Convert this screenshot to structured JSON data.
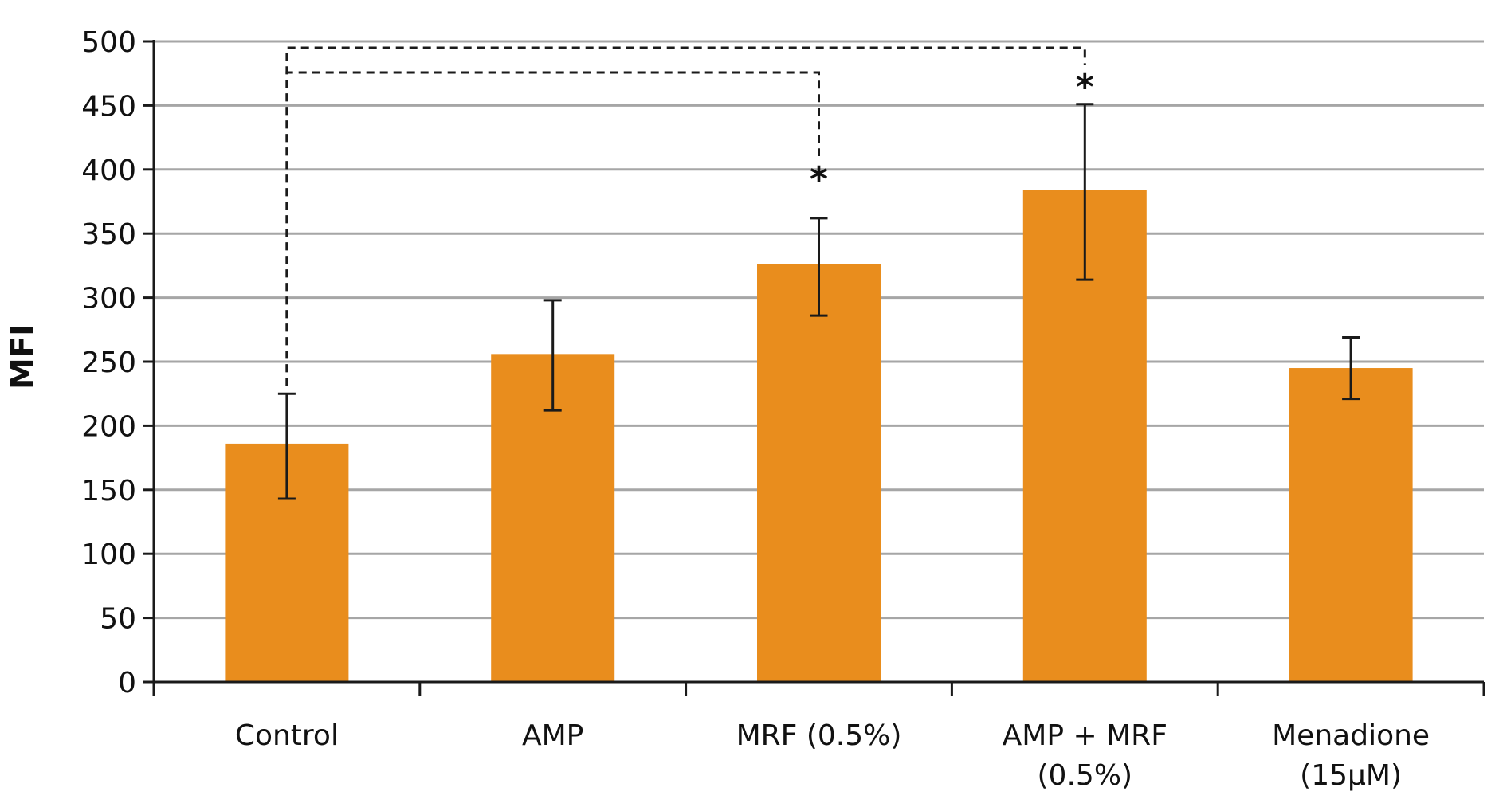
{
  "chart_data": {
    "type": "bar",
    "title": "",
    "xlabel": "",
    "ylabel": "MFI",
    "ylim": [
      0,
      500
    ],
    "yticks": [
      0,
      50,
      100,
      150,
      200,
      250,
      300,
      350,
      400,
      450,
      500
    ],
    "grid": true,
    "legend": "none",
    "categories": [
      [
        "Control"
      ],
      [
        "AMP"
      ],
      [
        "MRF (0.5%)"
      ],
      [
        "AMP + MRF",
        "(0.5%)"
      ],
      [
        "Menadione",
        "(15μM)"
      ]
    ],
    "series": [
      {
        "values": [
          186,
          256,
          326,
          384,
          245
        ],
        "error_upper": [
          225,
          298,
          362,
          451,
          269
        ],
        "error_lower": [
          143,
          212,
          286,
          314,
          221
        ]
      }
    ],
    "annotations": [
      {
        "type": "significance-bracket",
        "from_category": 0,
        "to_category": 2,
        "symbol": "*"
      },
      {
        "type": "significance-bracket",
        "from_category": 0,
        "to_category": 3,
        "symbol": "*"
      }
    ],
    "colors": {
      "bar": "#E98D1D",
      "grid": "#A6A6A6",
      "axis": "#1A1A1A",
      "text": "#111111"
    }
  }
}
